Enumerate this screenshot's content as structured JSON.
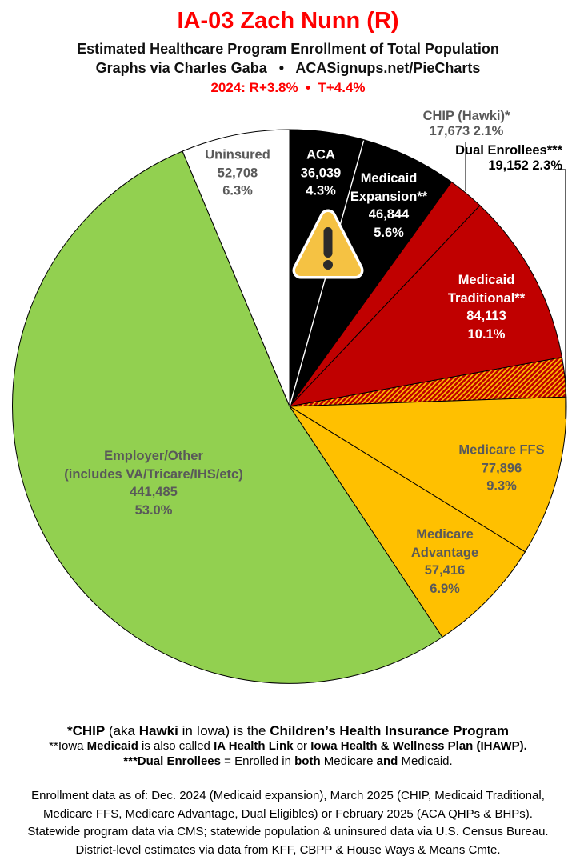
{
  "header": {
    "title": "IA-03 Zach Nunn (R)",
    "subtitle1": "Estimated Healthcare Program Enrollment of Total Population",
    "subtitle2": "Graphs via Charles Gaba   •   ACASignups.net/PieCharts",
    "subtitle3": "2024: R+3.8%  •  T+4.4%"
  },
  "colors": {
    "title_red": "#FE0000",
    "label_gray": "#595959",
    "black_slice": "#000000",
    "dark_red_slice": "#C00000",
    "gold_slice": "#FFC000",
    "green_slice": "#92D050",
    "white_slice": "#FFFFFF",
    "hatch_bg": "#FFC000",
    "hatch_stripe": "#C00000",
    "warning_yellow": "#F5C243",
    "warning_mark": "#2B2B2B"
  },
  "chart_data": {
    "type": "pie",
    "title": "IA-03 Zach Nunn (R)",
    "subtitle": "Estimated Healthcare Program Enrollment of Total Population",
    "start_angle_deg": 0,
    "direction": "clockwise-from-12-o'clock",
    "slices": [
      {
        "id": "aca",
        "name": "ACA",
        "value": 36039,
        "display_value": "36,039",
        "pct": "4.3%",
        "color": "#000000",
        "text_color": "#ffffff",
        "label_lines": [
          "ACA",
          "36,039",
          "4.3%"
        ]
      },
      {
        "id": "medicaid-expansion",
        "name": "Medicaid Expansion**",
        "value": 46844,
        "display_value": "46,844",
        "pct": "5.6%",
        "color": "#000000",
        "text_color": "#ffffff",
        "label_lines": [
          "Medicaid",
          "Expansion**",
          "46,844",
          "5.6%"
        ]
      },
      {
        "id": "chip",
        "name": "CHIP (Hawki)*",
        "value": 17673,
        "display_value": "17,673",
        "pct": "2.1%",
        "color": "#C00000",
        "external_label": true,
        "label_lines": [
          "CHIP (Hawki)*",
          "17,673 2.1%"
        ]
      },
      {
        "id": "medicaid-traditional",
        "name": "Medicaid Traditional**",
        "value": 84113,
        "display_value": "84,113",
        "pct": "10.1%",
        "color": "#C00000",
        "text_color": "#ffffff",
        "label_lines": [
          "Medicaid",
          "Traditional**",
          "84,113",
          "10.1%"
        ]
      },
      {
        "id": "dual-enrollees",
        "name": "Dual Enrollees***",
        "value": 19152,
        "display_value": "19,152",
        "pct": "2.3%",
        "color": "hatch",
        "external_label": true,
        "label_lines": [
          "Dual Enrollees***",
          "19,152 2.3%"
        ]
      },
      {
        "id": "medicare-ffs",
        "name": "Medicare FFS",
        "value": 77896,
        "display_value": "77,896",
        "pct": "9.3%",
        "color": "#FFC000",
        "text_color": "#595959",
        "label_lines": [
          "Medicare FFS",
          "77,896",
          "9.3%"
        ]
      },
      {
        "id": "medicare-advantage",
        "name": "Medicare Advantage",
        "value": 57416,
        "display_value": "57,416",
        "pct": "6.9%",
        "color": "#FFC000",
        "text_color": "#595959",
        "label_lines": [
          "Medicare",
          "Advantage",
          "57,416",
          "6.9%"
        ]
      },
      {
        "id": "employer-other",
        "name": "Employer/Other (includes VA/Tricare/IHS/etc)",
        "value": 441485,
        "display_value": "441,485",
        "pct": "53.0%",
        "color": "#92D050",
        "text_color": "#595959",
        "label_lines": [
          "Employer/Other",
          "(includes VA/Tricare/IHS/etc)",
          "441,485",
          "53.0%"
        ]
      },
      {
        "id": "uninsured",
        "name": "Uninsured",
        "value": 52708,
        "display_value": "52,708",
        "pct": "6.3%",
        "color": "#FFFFFF",
        "text_color": "#595959",
        "label_lines": [
          "Uninsured",
          "52,708",
          "6.3%"
        ]
      }
    ]
  },
  "footnotes": {
    "lines": [
      {
        "segments": [
          {
            "text": "*CHIP",
            "bold": true
          },
          {
            "text": " (aka ",
            "bold": false
          },
          {
            "text": "Hawki",
            "bold": true
          },
          {
            "text": " in Iowa) is the ",
            "bold": false
          },
          {
            "text": "Children’s Health Insurance Program",
            "bold": true
          }
        ]
      },
      {
        "segments": [
          {
            "text": "**Iowa ",
            "bold": false
          },
          {
            "text": "Medicaid",
            "bold": true
          },
          {
            "text": " is also called ",
            "bold": false
          },
          {
            "text": "IA Health Link",
            "bold": true
          },
          {
            "text": " or ",
            "bold": false
          },
          {
            "text": "Iowa Health & Wellness Plan (IHAWP).",
            "bold": true
          }
        ]
      },
      {
        "segments": [
          {
            "text": "***Dual Enrollees",
            "bold": true
          },
          {
            "text": " = Enrolled in ",
            "bold": false
          },
          {
            "text": "both",
            "bold": true
          },
          {
            "text": " Medicare ",
            "bold": false
          },
          {
            "text": "and",
            "bold": true
          },
          {
            "text": " Medicaid.",
            "bold": false
          }
        ]
      }
    ]
  },
  "notes": {
    "lines": [
      "Enrollment data as of: Dec. 2024 (Medicaid expansion), March 2025 (CHIP, Medicaid Traditional,",
      "Medicare FFS, Medicare Advantage, Dual Eligibles) or February 2025 (ACA QHPs & BHPs).",
      "Statewide program data via CMS; statewide population & uninsured data via U.S. Census Bureau.",
      "District-level estimates via data from KFF, CBPP & House Ways & Means Cmte."
    ]
  }
}
